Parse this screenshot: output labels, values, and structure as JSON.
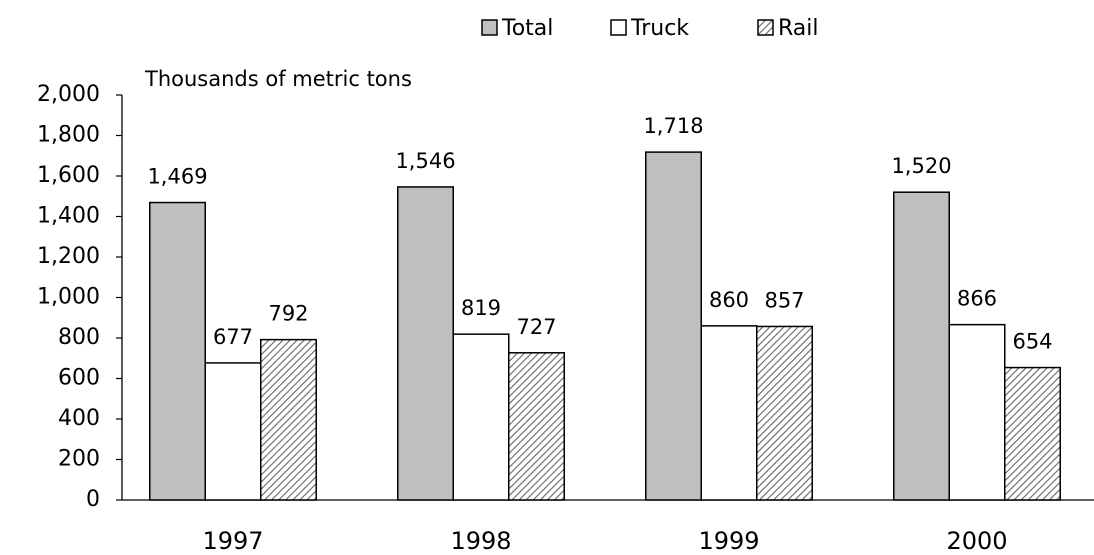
{
  "chart_data": {
    "type": "bar",
    "y_axis_label": "Thousands of metric tons",
    "categories": [
      "1997",
      "1998",
      "1999",
      "2000"
    ],
    "series": [
      {
        "name": "Total",
        "color": "#c0c0c0",
        "values": [
          1469,
          1546,
          1718,
          1520
        ],
        "value_labels": [
          "1,469",
          "1,546",
          "1,718",
          "1,520"
        ]
      },
      {
        "name": "Truck",
        "color": "#ffffff",
        "values": [
          677,
          819,
          860,
          866
        ]
      },
      {
        "name": "Rail",
        "color": "hatch",
        "values": [
          792,
          727,
          857,
          654
        ]
      }
    ],
    "ylim": [
      0,
      2000
    ],
    "yticks": [
      0,
      200,
      400,
      600,
      800,
      {
        "value": 1000,
        "label": "1,000"
      },
      {
        "value": 1200,
        "label": "1,200"
      },
      {
        "value": 1400,
        "label": "1,400"
      },
      {
        "value": 1600,
        "label": "1,600"
      },
      {
        "value": 1800,
        "label": "1,800"
      },
      {
        "value": 2000,
        "label": "2,000"
      }
    ],
    "legend": "top",
    "grid": false
  }
}
